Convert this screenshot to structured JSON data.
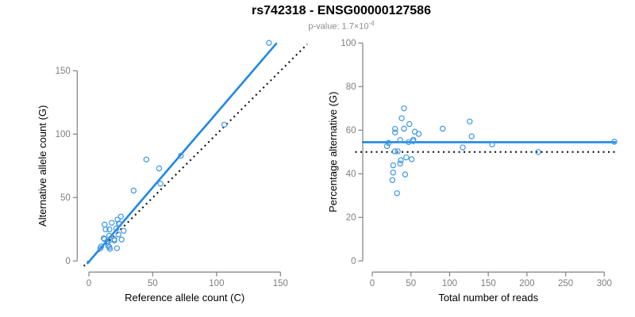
{
  "header": {
    "title": "rs742318 - ENSG00000127586",
    "subtitle_prefix": "p-value: 1.7×10",
    "subtitle_exponent": "-4"
  },
  "colors": {
    "fit_line_blue": "#1E88E5",
    "point_blue": "#3E97E6",
    "reference_line_black": "#000000",
    "axis_gray": "#8a8a8a",
    "tick_label_gray": "#7e7e7e",
    "axis_title_black": "#000000"
  },
  "chart_data": [
    {
      "type": "scatter",
      "panel": "left",
      "xlabel": "Reference allele count (C)",
      "ylabel": "Alternative allele count (G)",
      "xlim": [
        0,
        150
      ],
      "ylim": [
        0,
        150
      ],
      "xticks": [
        0,
        50,
        100,
        150
      ],
      "yticks": [
        0,
        50,
        100,
        150
      ],
      "grid": false,
      "legend": "none",
      "points": [
        [
          9,
          10
        ],
        [
          9.6,
          11.4
        ],
        [
          11.6,
          17.9
        ],
        [
          12.1,
          17.4
        ],
        [
          12.3,
          28.7
        ],
        [
          13.1,
          24.9
        ],
        [
          17.9,
          30.1
        ],
        [
          16.1,
          24.9
        ],
        [
          22.4,
          32.6
        ],
        [
          25,
          35
        ],
        [
          23.5,
          29.5
        ],
        [
          23.9,
          29.2
        ],
        [
          21.4,
          25.6
        ],
        [
          16,
          20
        ],
        [
          14.4,
          14.6
        ],
        [
          16.4,
          16.6
        ],
        [
          23.1,
          20.9
        ],
        [
          19.9,
          17.1
        ],
        [
          19.9,
          16.1
        ],
        [
          15.1,
          11.9
        ],
        [
          27.2,
          23.8
        ],
        [
          16,
          11
        ],
        [
          25.6,
          16.9
        ],
        [
          16.4,
          9.6
        ],
        [
          22,
          10
        ],
        [
          35,
          55.5
        ],
        [
          45,
          80
        ],
        [
          55,
          73
        ],
        [
          56,
          61
        ],
        [
          72,
          83
        ],
        [
          106,
          107.5
        ],
        [
          141,
          172
        ]
      ],
      "fit_line": {
        "style": "solid",
        "slope": 1.17,
        "intercept": -0.6,
        "x1": -1,
        "y1": -1.8,
        "x2": 146.7,
        "y2": 171.4
      },
      "reference_line": {
        "style": "dotted",
        "slope": 1,
        "intercept": 0,
        "x1": -4,
        "y1": -4,
        "x2": 171,
        "y2": 171
      }
    },
    {
      "type": "scatter",
      "panel": "right",
      "xlabel": "Total number of reads",
      "ylabel": "Percentage alternative (G)",
      "xlim": [
        0,
        310
      ],
      "ylim": [
        0,
        100
      ],
      "xticks": [
        0,
        50,
        100,
        150,
        200,
        250,
        300
      ],
      "yticks": [
        0,
        20,
        40,
        60,
        80,
        100
      ],
      "grid": false,
      "legend": "none",
      "points": [
        [
          19,
          52.7
        ],
        [
          21,
          54.2
        ],
        [
          29.5,
          60.6
        ],
        [
          29.5,
          59
        ],
        [
          41,
          70
        ],
        [
          38,
          65.5
        ],
        [
          48,
          62.8
        ],
        [
          41,
          60.7
        ],
        [
          55,
          59.3
        ],
        [
          60,
          58.3
        ],
        [
          53,
          55.6
        ],
        [
          53,
          55
        ],
        [
          47,
          54.5
        ],
        [
          36,
          55.5
        ],
        [
          29,
          50.3
        ],
        [
          33,
          50.3
        ],
        [
          44,
          47.5
        ],
        [
          37,
          46.2
        ],
        [
          36,
          44.7
        ],
        [
          27,
          43.9
        ],
        [
          51,
          46.7
        ],
        [
          27,
          40.6
        ],
        [
          42.5,
          39.7
        ],
        [
          26,
          37.1
        ],
        [
          32,
          31.1
        ],
        [
          91,
          60.7
        ],
        [
          126,
          64
        ],
        [
          128.5,
          57.2
        ],
        [
          117,
          52.1
        ],
        [
          155,
          53.5
        ],
        [
          214.5,
          50
        ],
        [
          313,
          54.7
        ]
      ],
      "fit_line": {
        "style": "solid",
        "y": 54.5,
        "x1": -12,
        "y1": 54.5,
        "x2": 314,
        "y2": 54.5
      },
      "reference_line": {
        "style": "dotted",
        "y": 50,
        "x1": -22,
        "y1": 50,
        "x2": 314,
        "y2": 50
      }
    }
  ]
}
